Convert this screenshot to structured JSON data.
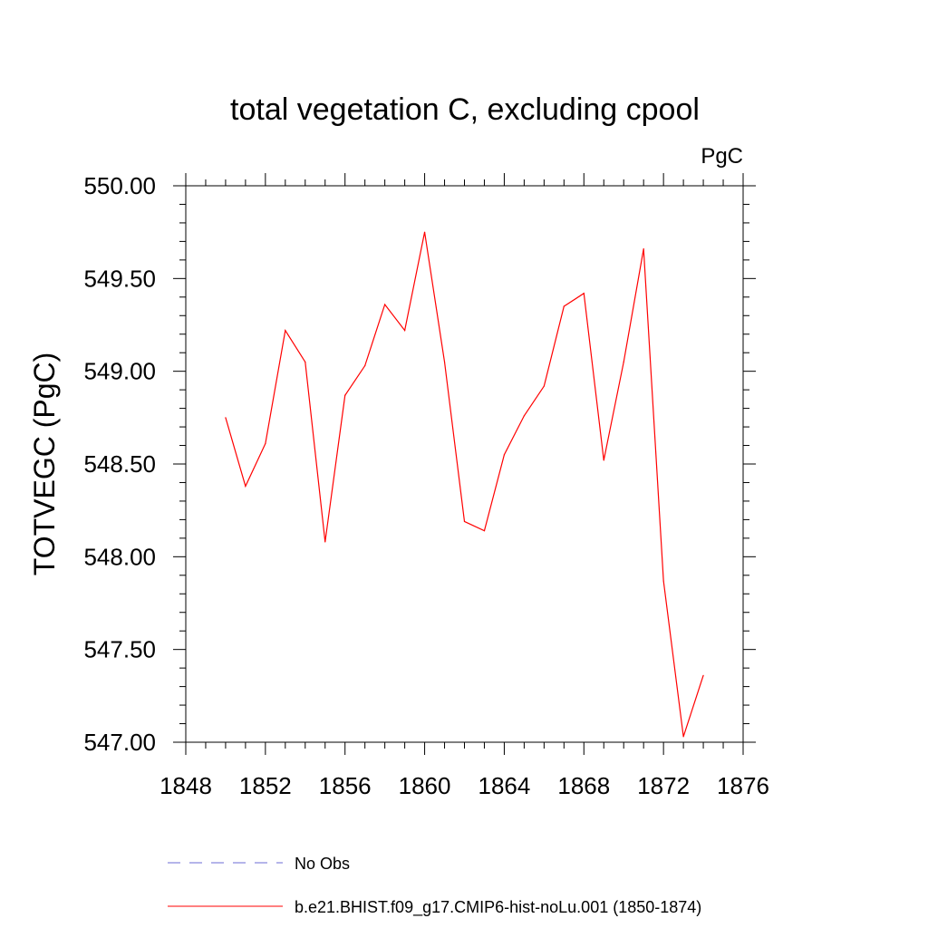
{
  "chart_data": {
    "type": "line",
    "title": "total vegetation C, excluding cpool",
    "units": "PgC",
    "ylabel": "TOTVEGC  (PgC)",
    "xlabel": "",
    "xlim": [
      1848,
      1876
    ],
    "ylim": [
      547.0,
      550.0
    ],
    "xticks": [
      "1848",
      "1852",
      "1856",
      "1860",
      "1864",
      "1868",
      "1872",
      "1876"
    ],
    "yticks": [
      "547.00",
      "547.50",
      "548.00",
      "548.50",
      "549.00",
      "549.50",
      "550.00"
    ],
    "x": [
      1850,
      1851,
      1852,
      1853,
      1854,
      1855,
      1856,
      1857,
      1858,
      1859,
      1860,
      1861,
      1862,
      1863,
      1864,
      1865,
      1866,
      1867,
      1868,
      1869,
      1870,
      1871,
      1872,
      1873,
      1874
    ],
    "series": [
      {
        "name": "b.e21.BHIST.f09_g17.CMIP6-hist-noLu.001 (1850-1874)",
        "color": "#ff0000",
        "values": [
          548.75,
          548.38,
          548.61,
          549.22,
          549.05,
          548.08,
          548.87,
          549.03,
          549.36,
          549.22,
          549.75,
          549.05,
          548.19,
          548.14,
          548.55,
          548.76,
          548.92,
          549.35,
          549.42,
          548.52,
          549.05,
          549.66,
          547.87,
          547.03,
          547.36
        ]
      }
    ],
    "legend": [
      {
        "label": "No Obs",
        "color": "#6b6bd6",
        "dash": true
      },
      {
        "label": "b.e21.BHIST.f09_g17.CMIP6-hist-noLu.001 (1850-1874)",
        "color": "#ff0000",
        "dash": false
      }
    ],
    "legend_position": "bottom-left",
    "grid": false
  }
}
